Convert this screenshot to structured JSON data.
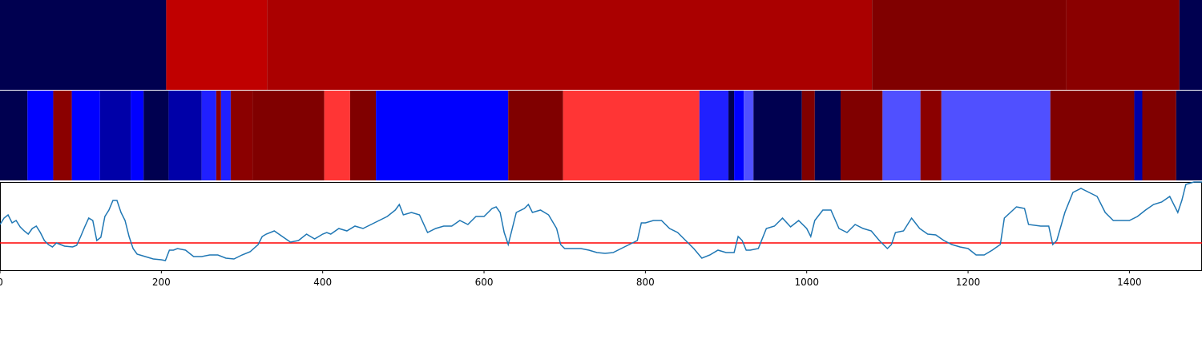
{
  "chart_data": [
    {
      "type": "segments",
      "xlim": [
        0,
        1490
      ],
      "segments": [
        {
          "start": 0,
          "end": 206,
          "color": "#000050"
        },
        {
          "start": 206,
          "end": 331,
          "color": "#c00000"
        },
        {
          "start": 331,
          "end": 1081,
          "color": "#aa0000"
        },
        {
          "start": 1081,
          "end": 1322,
          "color": "#800000"
        },
        {
          "start": 1322,
          "end": 1462,
          "color": "#8a0000"
        },
        {
          "start": 1462,
          "end": 1490,
          "color": "#000050"
        }
      ]
    },
    {
      "type": "segments",
      "xlim": [
        0,
        1490
      ],
      "segments": [
        {
          "start": 0,
          "end": 34,
          "color": "#000050"
        },
        {
          "start": 34,
          "end": 66,
          "color": "#0000ff"
        },
        {
          "start": 66,
          "end": 89,
          "color": "#8b0000"
        },
        {
          "start": 89,
          "end": 124,
          "color": "#0000ff"
        },
        {
          "start": 124,
          "end": 162,
          "color": "#0000a8"
        },
        {
          "start": 162,
          "end": 178,
          "color": "#0000ff"
        },
        {
          "start": 178,
          "end": 209,
          "color": "#000050"
        },
        {
          "start": 209,
          "end": 250,
          "color": "#0000a8"
        },
        {
          "start": 250,
          "end": 268,
          "color": "#2020ff"
        },
        {
          "start": 268,
          "end": 274,
          "color": "#8b0000"
        },
        {
          "start": 274,
          "end": 286,
          "color": "#2020ff"
        },
        {
          "start": 286,
          "end": 313,
          "color": "#8b0000"
        },
        {
          "start": 313,
          "end": 402,
          "color": "#800000"
        },
        {
          "start": 402,
          "end": 434,
          "color": "#ff3535"
        },
        {
          "start": 434,
          "end": 466,
          "color": "#800000"
        },
        {
          "start": 466,
          "end": 630,
          "color": "#0000ff"
        },
        {
          "start": 630,
          "end": 698,
          "color": "#800000"
        },
        {
          "start": 698,
          "end": 867,
          "color": "#ff3535"
        },
        {
          "start": 867,
          "end": 903,
          "color": "#2020ff"
        },
        {
          "start": 903,
          "end": 910,
          "color": "#000050"
        },
        {
          "start": 910,
          "end": 922,
          "color": "#0000ff"
        },
        {
          "start": 922,
          "end": 934,
          "color": "#5050ff"
        },
        {
          "start": 934,
          "end": 994,
          "color": "#000050"
        },
        {
          "start": 994,
          "end": 1010,
          "color": "#800000"
        },
        {
          "start": 1010,
          "end": 1042,
          "color": "#000050"
        },
        {
          "start": 1042,
          "end": 1094,
          "color": "#800000"
        },
        {
          "start": 1094,
          "end": 1141,
          "color": "#5050ff"
        },
        {
          "start": 1141,
          "end": 1167,
          "color": "#8b0000"
        },
        {
          "start": 1167,
          "end": 1302,
          "color": "#5050ff"
        },
        {
          "start": 1302,
          "end": 1406,
          "color": "#800000"
        },
        {
          "start": 1406,
          "end": 1416,
          "color": "#0000a8"
        },
        {
          "start": 1416,
          "end": 1458,
          "color": "#800000"
        },
        {
          "start": 1458,
          "end": 1490,
          "color": "#000050"
        }
      ]
    },
    {
      "type": "line",
      "xlim": [
        0,
        1490
      ],
      "ylim": [
        0,
        110
      ],
      "xticks": [
        0,
        200,
        400,
        600,
        800,
        1000,
        1200,
        1400
      ],
      "hline": 34,
      "hline_color": "#ff0000",
      "color": "#1f77b4",
      "x": [
        0,
        5,
        10,
        15,
        20,
        25,
        30,
        35,
        40,
        45,
        50,
        55,
        60,
        65,
        70,
        75,
        80,
        90,
        95,
        100,
        105,
        110,
        115,
        120,
        125,
        130,
        135,
        140,
        145,
        150,
        155,
        160,
        165,
        170,
        180,
        190,
        200,
        205,
        210,
        215,
        220,
        230,
        240,
        250,
        260,
        270,
        280,
        290,
        300,
        310,
        320,
        325,
        330,
        340,
        350,
        360,
        370,
        380,
        390,
        400,
        405,
        410,
        420,
        430,
        440,
        450,
        460,
        470,
        480,
        490,
        495,
        500,
        510,
        520,
        530,
        540,
        550,
        560,
        570,
        580,
        590,
        600,
        610,
        615,
        620,
        625,
        630,
        635,
        640,
        650,
        655,
        660,
        670,
        680,
        690,
        695,
        700,
        710,
        720,
        730,
        740,
        750,
        760,
        770,
        780,
        790,
        795,
        800,
        810,
        820,
        830,
        840,
        850,
        860,
        870,
        880,
        890,
        900,
        910,
        915,
        920,
        925,
        930,
        940,
        950,
        960,
        970,
        980,
        990,
        1000,
        1005,
        1010,
        1020,
        1030,
        1040,
        1050,
        1060,
        1070,
        1080,
        1090,
        1100,
        1105,
        1110,
        1120,
        1130,
        1140,
        1150,
        1160,
        1170,
        1180,
        1190,
        1200,
        1210,
        1220,
        1230,
        1240,
        1245,
        1260,
        1270,
        1275,
        1290,
        1300,
        1305,
        1310,
        1320,
        1330,
        1340,
        1350,
        1360,
        1370,
        1380,
        1390,
        1400,
        1410,
        1420,
        1430,
        1440,
        1450,
        1460,
        1465,
        1470,
        1480,
        1490
      ],
      "values": [
        57,
        65,
        69,
        59,
        62,
        54,
        49,
        45,
        52,
        55,
        47,
        37,
        32,
        29,
        34,
        32,
        30,
        29,
        31,
        42,
        54,
        65,
        62,
        37,
        41,
        67,
        75,
        87,
        87,
        72,
        62,
        42,
        27,
        20,
        17,
        14,
        13,
        12,
        25,
        25,
        27,
        25,
        17,
        17,
        19,
        19,
        15,
        14,
        19,
        23,
        32,
        42,
        45,
        49,
        42,
        35,
        37,
        45,
        39,
        45,
        47,
        45,
        52,
        49,
        55,
        52,
        57,
        62,
        67,
        75,
        82,
        69,
        72,
        69,
        47,
        52,
        55,
        55,
        62,
        57,
        67,
        67,
        77,
        79,
        72,
        47,
        32,
        52,
        72,
        77,
        82,
        72,
        75,
        69,
        52,
        32,
        27,
        27,
        27,
        25,
        22,
        21,
        22,
        27,
        32,
        37,
        59,
        59,
        62,
        62,
        52,
        47,
        37,
        27,
        15,
        19,
        25,
        22,
        22,
        42,
        37,
        25,
        25,
        27,
        52,
        55,
        65,
        54,
        62,
        52,
        42,
        62,
        75,
        75,
        52,
        47,
        57,
        52,
        49,
        37,
        27,
        32,
        47,
        49,
        65,
        52,
        45,
        44,
        37,
        32,
        29,
        27,
        19,
        19,
        25,
        32,
        65,
        79,
        77,
        57,
        55,
        55,
        32,
        37,
        72,
        97,
        102,
        97,
        92,
        72,
        62,
        62,
        62,
        67,
        75,
        82,
        85,
        92,
        72,
        87,
        107,
        110,
        110
      ]
    }
  ]
}
